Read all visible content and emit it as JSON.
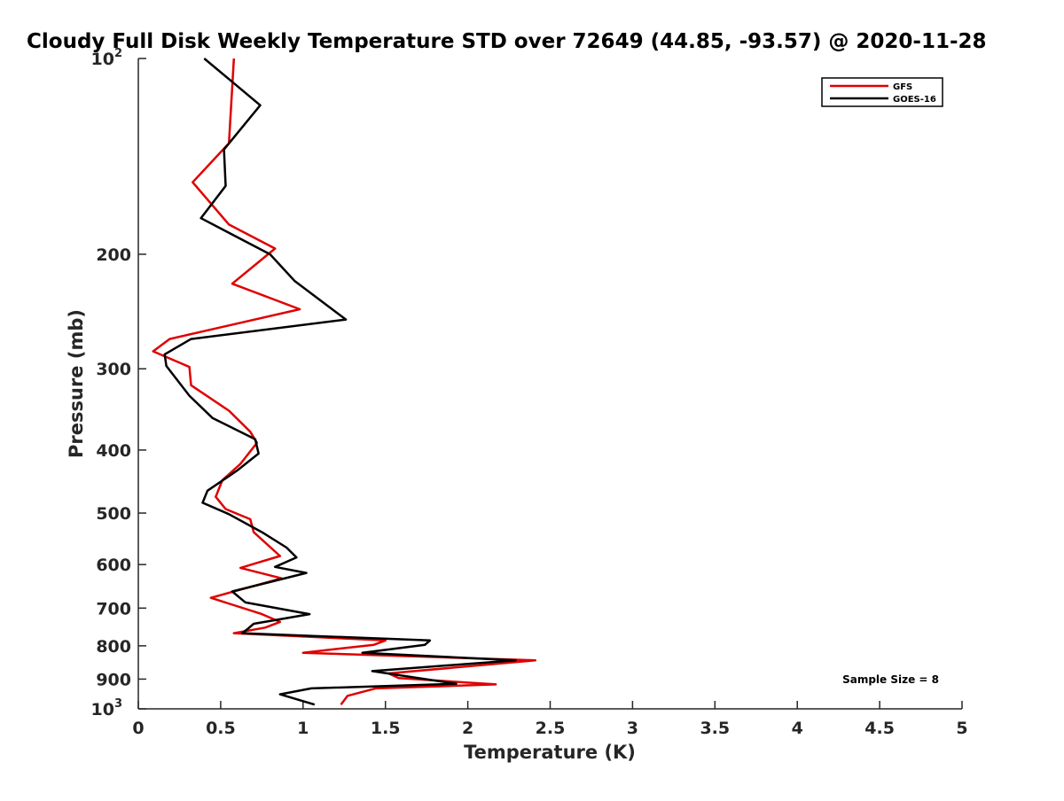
{
  "chart_data": {
    "type": "line",
    "title": "Cloudy Full Disk Weekly Temperature STD over 72649 (44.85, -93.57) @ 2020-11-28",
    "xlabel": "Temperature (K)",
    "ylabel": "Pressure (mb)",
    "xlim": [
      0,
      5
    ],
    "ylim": [
      100,
      1000
    ],
    "y_scale": "log",
    "y_reversed": true,
    "x_ticks": [
      "0",
      "0.5",
      "1",
      "1.5",
      "2",
      "2.5",
      "3",
      "3.5",
      "4",
      "4.5",
      "5"
    ],
    "y_ticks": [
      {
        "value": 100,
        "label": "10",
        "sup": "2"
      },
      {
        "value": 200,
        "label": "200",
        "sup": ""
      },
      {
        "value": 300,
        "label": "300",
        "sup": ""
      },
      {
        "value": 400,
        "label": "400",
        "sup": ""
      },
      {
        "value": 500,
        "label": "500",
        "sup": ""
      },
      {
        "value": 600,
        "label": "600",
        "sup": ""
      },
      {
        "value": 700,
        "label": "700",
        "sup": ""
      },
      {
        "value": 800,
        "label": "800",
        "sup": ""
      },
      {
        "value": 900,
        "label": "900",
        "sup": ""
      },
      {
        "value": 1000,
        "label": "10",
        "sup": "3"
      }
    ],
    "grid": false,
    "legend_position": "top-right",
    "annotation": "Sample Size = 8",
    "series": [
      {
        "name": "GFS",
        "color": "#e00000",
        "points": [
          [
            0.58,
            100
          ],
          [
            0.55,
            135
          ],
          [
            0.33,
            155
          ],
          [
            0.55,
            180
          ],
          [
            0.83,
            196
          ],
          [
            0.57,
            222
          ],
          [
            0.98,
            243
          ],
          [
            0.19,
            270
          ],
          [
            0.09,
            282
          ],
          [
            0.31,
            298
          ],
          [
            0.32,
            318
          ],
          [
            0.55,
            348
          ],
          [
            0.68,
            375
          ],
          [
            0.72,
            390
          ],
          [
            0.62,
            420
          ],
          [
            0.51,
            445
          ],
          [
            0.47,
            472
          ],
          [
            0.53,
            493
          ],
          [
            0.68,
            511
          ],
          [
            0.7,
            535
          ],
          [
            0.86,
            582
          ],
          [
            0.62,
            607
          ],
          [
            0.87,
            630
          ],
          [
            0.44,
            675
          ],
          [
            0.75,
            715
          ],
          [
            0.86,
            735
          ],
          [
            0.77,
            750
          ],
          [
            0.58,
            765
          ],
          [
            1.5,
            785
          ],
          [
            1.43,
            797
          ],
          [
            1.0,
            820
          ],
          [
            2.41,
            842
          ],
          [
            1.52,
            882
          ],
          [
            1.58,
            897
          ],
          [
            2.17,
            917
          ],
          [
            1.44,
            930
          ],
          [
            1.27,
            955
          ],
          [
            1.23,
            985
          ]
        ]
      },
      {
        "name": "GOES-16",
        "color": "#000000",
        "points": [
          [
            0.4,
            100
          ],
          [
            0.74,
            118
          ],
          [
            0.52,
            138
          ],
          [
            0.53,
            157
          ],
          [
            0.38,
            176
          ],
          [
            0.8,
            200
          ],
          [
            0.95,
            220
          ],
          [
            1.26,
            252
          ],
          [
            0.32,
            270
          ],
          [
            0.16,
            285
          ],
          [
            0.17,
            297
          ],
          [
            0.31,
            330
          ],
          [
            0.45,
            357
          ],
          [
            0.71,
            385
          ],
          [
            0.73,
            405
          ],
          [
            0.6,
            430
          ],
          [
            0.42,
            462
          ],
          [
            0.39,
            482
          ],
          [
            0.55,
            502
          ],
          [
            0.75,
            535
          ],
          [
            0.9,
            565
          ],
          [
            0.96,
            585
          ],
          [
            0.83,
            605
          ],
          [
            1.02,
            618
          ],
          [
            0.57,
            660
          ],
          [
            0.65,
            686
          ],
          [
            1.04,
            715
          ],
          [
            0.7,
            740
          ],
          [
            0.66,
            755
          ],
          [
            0.63,
            765
          ],
          [
            1.77,
            785
          ],
          [
            1.74,
            797
          ],
          [
            1.36,
            820
          ],
          [
            2.29,
            842
          ],
          [
            1.42,
            875
          ],
          [
            1.93,
            915
          ],
          [
            1.05,
            930
          ],
          [
            0.86,
            950
          ],
          [
            1.07,
            985
          ]
        ]
      }
    ]
  }
}
